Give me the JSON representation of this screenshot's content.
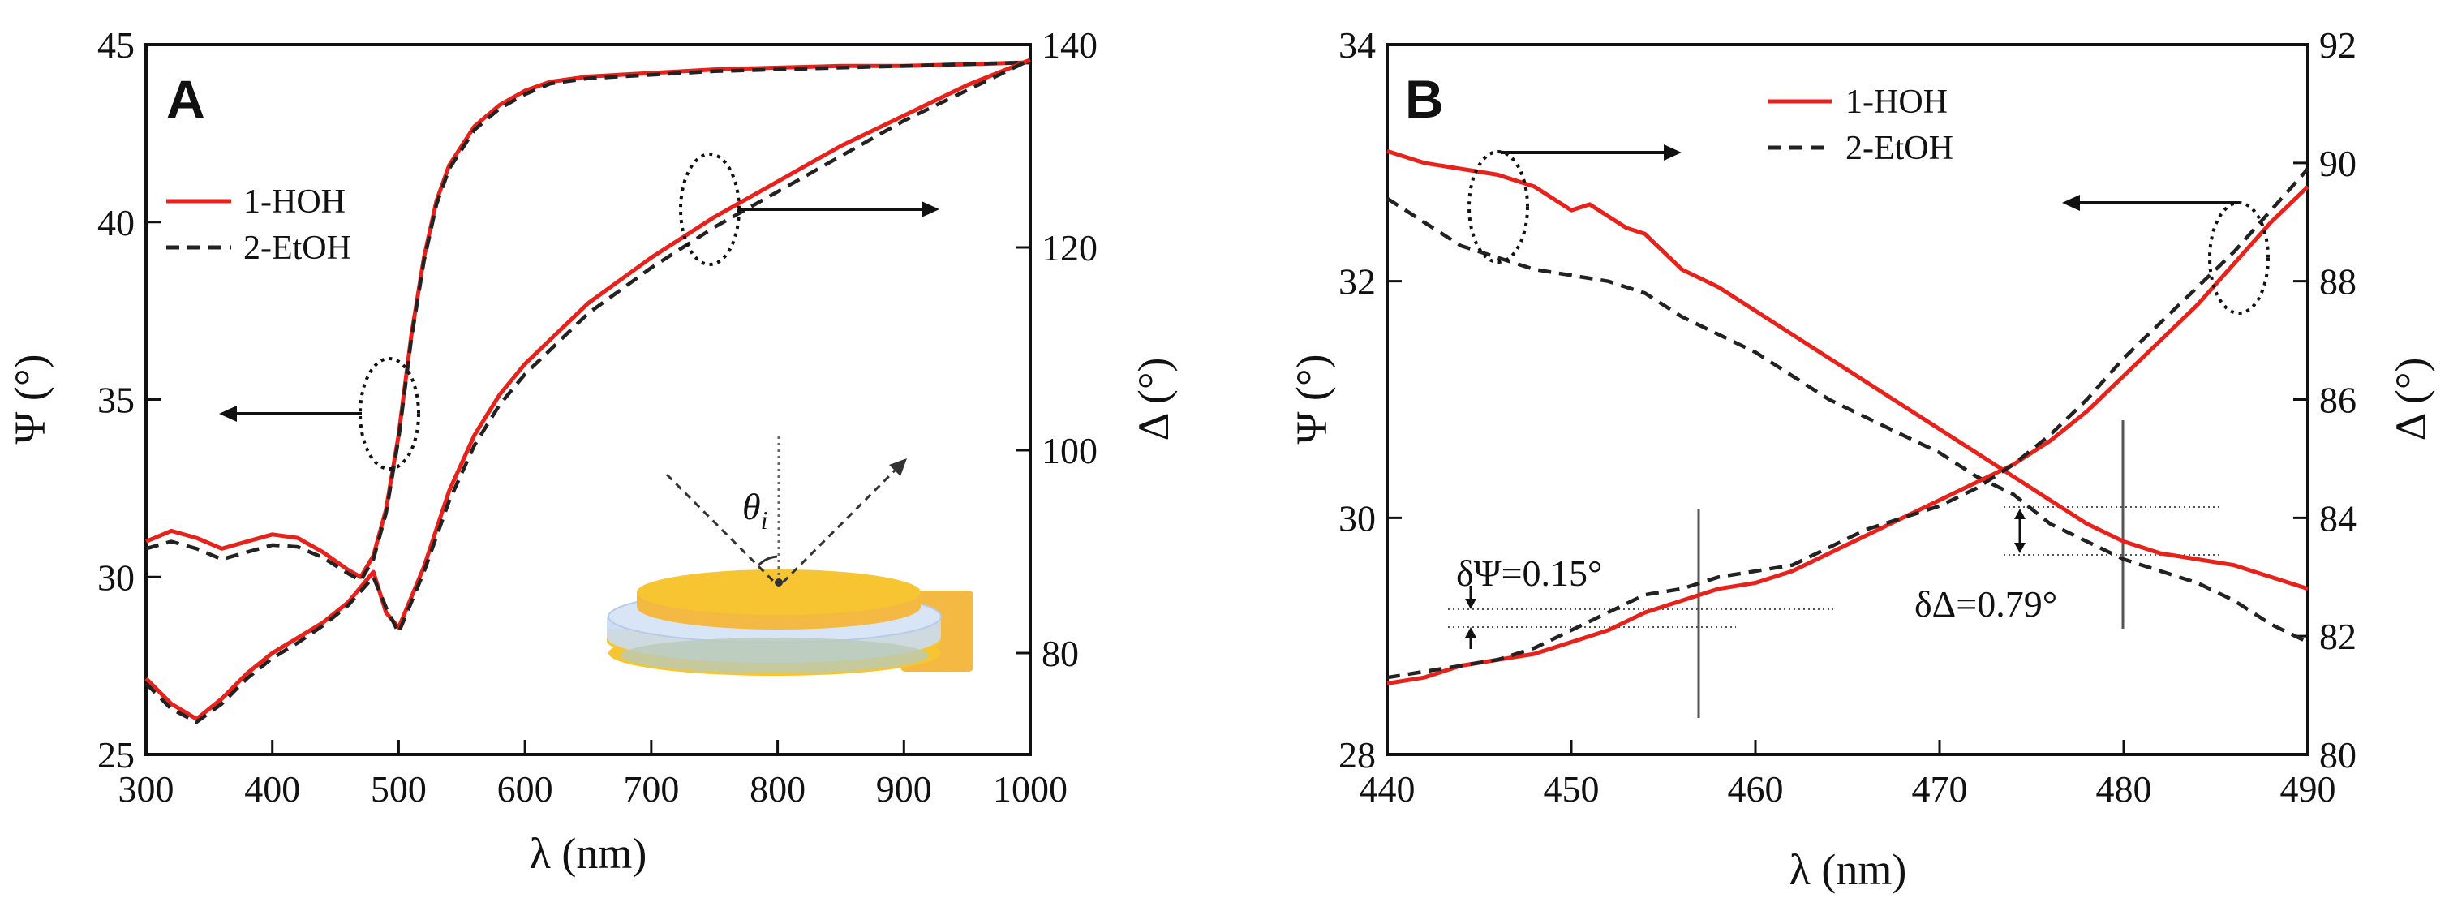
{
  "colors": {
    "red": "#e8221b",
    "black": "#222222",
    "gold": "#f7c531",
    "blue": "#c9dbf3"
  },
  "chart_data": [
    {
      "id": "A",
      "type": "line",
      "panel_label": "A",
      "xlabel": "λ (nm)",
      "ylabel_left": "Ψ (°)",
      "ylabel_right": "Δ (°)",
      "xlim": [
        300,
        1000
      ],
      "ylim_left": [
        25,
        45
      ],
      "ylim_right": [
        70,
        140
      ],
      "xticks": [
        "300",
        "400",
        "500",
        "600",
        "700",
        "800",
        "900",
        "1000"
      ],
      "yticks_left": [
        "25",
        "30",
        "35",
        "40",
        "45"
      ],
      "yticks_right": [
        "80",
        "100",
        "120",
        "140"
      ],
      "legend": [
        "1-HOH",
        "2-EtOH"
      ],
      "inset_label": "θ",
      "inset_label_sub": "i",
      "series": [
        {
          "name": "1-HOH",
          "axis": "left",
          "x": [
            300,
            320,
            340,
            360,
            380,
            400,
            420,
            440,
            460,
            470,
            480,
            490,
            500,
            510,
            520,
            530,
            540,
            560,
            580,
            600,
            620,
            650,
            700,
            750,
            800,
            850,
            900,
            950,
            1000
          ],
          "values": [
            31.0,
            31.3,
            31.1,
            30.8,
            31.0,
            31.2,
            31.1,
            30.7,
            30.2,
            30.0,
            30.6,
            31.9,
            34.0,
            36.8,
            39.0,
            40.6,
            41.6,
            42.7,
            43.3,
            43.7,
            43.95,
            44.1,
            44.2,
            44.3,
            44.35,
            44.4,
            44.4,
            44.45,
            44.5
          ]
        },
        {
          "name": "2-EtOH",
          "axis": "left",
          "x": [
            300,
            320,
            340,
            360,
            380,
            400,
            420,
            440,
            460,
            470,
            480,
            490,
            500,
            510,
            520,
            530,
            540,
            560,
            580,
            600,
            620,
            650,
            700,
            750,
            800,
            850,
            900,
            950,
            1000
          ],
          "values": [
            30.8,
            31.0,
            30.8,
            30.5,
            30.7,
            30.9,
            30.85,
            30.55,
            30.1,
            29.9,
            30.5,
            31.8,
            33.9,
            36.7,
            38.9,
            40.5,
            41.5,
            42.6,
            43.2,
            43.6,
            43.9,
            44.05,
            44.15,
            44.25,
            44.3,
            44.35,
            44.4,
            44.45,
            44.5
          ]
        },
        {
          "name": "1-HOH",
          "axis": "right",
          "x": [
            300,
            320,
            340,
            360,
            380,
            400,
            420,
            440,
            460,
            480,
            490,
            500,
            520,
            540,
            560,
            580,
            600,
            650,
            700,
            750,
            800,
            850,
            900,
            950,
            1000
          ],
          "values": [
            77.5,
            75.0,
            73.5,
            75.5,
            78.0,
            80.0,
            81.5,
            83.0,
            85.0,
            88.0,
            84.0,
            82.5,
            88.5,
            96.0,
            101.5,
            105.5,
            108.5,
            114.5,
            119.0,
            123.0,
            126.5,
            130.0,
            133.0,
            136.0,
            138.5
          ]
        },
        {
          "name": "2-EtOH",
          "axis": "right",
          "x": [
            300,
            320,
            340,
            360,
            380,
            400,
            420,
            440,
            460,
            480,
            490,
            500,
            520,
            540,
            560,
            580,
            600,
            650,
            700,
            750,
            800,
            850,
            900,
            950,
            1000
          ],
          "values": [
            77.0,
            74.5,
            73.2,
            75.0,
            77.5,
            79.5,
            81.0,
            82.7,
            84.7,
            87.5,
            84.5,
            82.0,
            88.0,
            95.0,
            100.5,
            104.5,
            107.5,
            113.5,
            118.0,
            122.0,
            125.5,
            129.0,
            132.5,
            135.5,
            138.5
          ]
        }
      ]
    },
    {
      "id": "B",
      "type": "line",
      "panel_label": "B",
      "xlabel": "λ (nm)",
      "ylabel_left": "Ψ (°)",
      "ylabel_right": "Δ (°)",
      "xlim": [
        440,
        490
      ],
      "ylim_left": [
        28,
        34
      ],
      "ylim_right": [
        80,
        92
      ],
      "xticks": [
        "440",
        "450",
        "460",
        "470",
        "480",
        "490"
      ],
      "yticks_left": [
        "28",
        "30",
        "32",
        "34"
      ],
      "yticks_right": [
        "80",
        "82",
        "84",
        "86",
        "88",
        "90",
        "92"
      ],
      "legend": [
        "1-HOH",
        "2-EtOH"
      ],
      "annotations": {
        "delta_psi": "δΨ=0.15°",
        "delta_delta": "δΔ=0.79°"
      },
      "series": [
        {
          "name": "1-HOH",
          "axis": "left",
          "x": [
            440,
            442,
            444,
            446,
            448,
            450,
            451,
            452,
            453,
            454,
            455,
            456,
            458,
            460,
            462,
            464,
            466,
            468,
            470,
            472,
            474,
            476,
            478,
            480,
            482,
            484,
            486,
            488,
            490
          ],
          "values": [
            33.1,
            33.0,
            32.95,
            32.9,
            32.8,
            32.6,
            32.65,
            32.55,
            32.45,
            32.4,
            32.25,
            32.1,
            31.95,
            31.75,
            31.55,
            31.35,
            31.15,
            30.95,
            30.75,
            30.55,
            30.35,
            30.15,
            29.95,
            29.8,
            29.7,
            29.65,
            29.6,
            29.5,
            29.4
          ]
        },
        {
          "name": "2-EtOH",
          "axis": "left",
          "x": [
            440,
            442,
            444,
            446,
            448,
            450,
            452,
            454,
            456,
            458,
            460,
            462,
            464,
            466,
            468,
            470,
            472,
            474,
            476,
            478,
            480,
            482,
            484,
            486,
            488,
            490
          ],
          "values": [
            32.7,
            32.5,
            32.3,
            32.2,
            32.1,
            32.05,
            32.0,
            31.9,
            31.7,
            31.55,
            31.4,
            31.2,
            31.0,
            30.85,
            30.7,
            30.55,
            30.35,
            30.2,
            29.95,
            29.8,
            29.65,
            29.55,
            29.45,
            29.3,
            29.1,
            28.95
          ]
        },
        {
          "name": "1-HOH",
          "axis": "right",
          "x": [
            440,
            442,
            444,
            446,
            448,
            450,
            452,
            454,
            456,
            458,
            460,
            462,
            464,
            466,
            468,
            470,
            472,
            474,
            476,
            478,
            480,
            482,
            484,
            486,
            488,
            490
          ],
          "values": [
            81.2,
            81.3,
            81.5,
            81.6,
            81.7,
            81.9,
            82.1,
            82.4,
            82.6,
            82.8,
            82.9,
            83.1,
            83.4,
            83.7,
            84.0,
            84.3,
            84.6,
            84.9,
            85.3,
            85.8,
            86.4,
            87.0,
            87.6,
            88.3,
            89.0,
            89.6
          ]
        },
        {
          "name": "2-EtOH",
          "axis": "right",
          "x": [
            440,
            442,
            444,
            446,
            448,
            450,
            452,
            454,
            456,
            458,
            460,
            462,
            464,
            466,
            468,
            470,
            472,
            474,
            476,
            478,
            480,
            482,
            484,
            486,
            488,
            490
          ],
          "values": [
            81.3,
            81.4,
            81.5,
            81.6,
            81.8,
            82.1,
            82.4,
            82.7,
            82.8,
            83.0,
            83.1,
            83.2,
            83.5,
            83.8,
            84.0,
            84.2,
            84.5,
            84.9,
            85.4,
            86.0,
            86.7,
            87.3,
            87.9,
            88.5,
            89.2,
            89.9
          ]
        }
      ]
    }
  ]
}
